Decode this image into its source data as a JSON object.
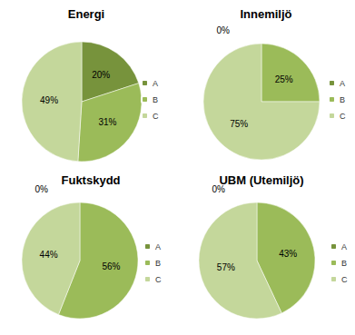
{
  "chart_data": [
    {
      "type": "pie",
      "title": "Energi",
      "categories": [
        "A",
        "B",
        "C"
      ],
      "values": [
        20,
        31,
        49
      ],
      "value_labels": [
        "20%",
        "31%",
        "49%"
      ],
      "colors": [
        "#77933c",
        "#9bbb59",
        "#c4d79b"
      ],
      "data_labels": true,
      "legend": "right"
    },
    {
      "type": "pie",
      "title": "Innemiljö",
      "categories": [
        "A",
        "B",
        "C"
      ],
      "values": [
        0,
        25,
        75
      ],
      "value_labels": [
        "0%",
        "25%",
        "75%"
      ],
      "colors": [
        "#77933c",
        "#9bbb59",
        "#c4d79b"
      ],
      "data_labels": true,
      "legend": "right"
    },
    {
      "type": "pie",
      "title": "Fuktskydd",
      "categories": [
        "A",
        "B",
        "C"
      ],
      "values": [
        0,
        56,
        44
      ],
      "value_labels": [
        "0%",
        "56%",
        "44%"
      ],
      "colors": [
        "#77933c",
        "#9bbb59",
        "#c4d79b"
      ],
      "data_labels": true,
      "legend": "right"
    },
    {
      "type": "pie",
      "title": "UBM (Utemiljö)",
      "categories": [
        "A",
        "B",
        "C"
      ],
      "values": [
        0,
        43,
        57
      ],
      "value_labels": [
        "0%",
        "43%",
        "57%"
      ],
      "colors": [
        "#77933c",
        "#9bbb59",
        "#c4d79b"
      ],
      "data_labels": true,
      "legend": "right"
    }
  ]
}
